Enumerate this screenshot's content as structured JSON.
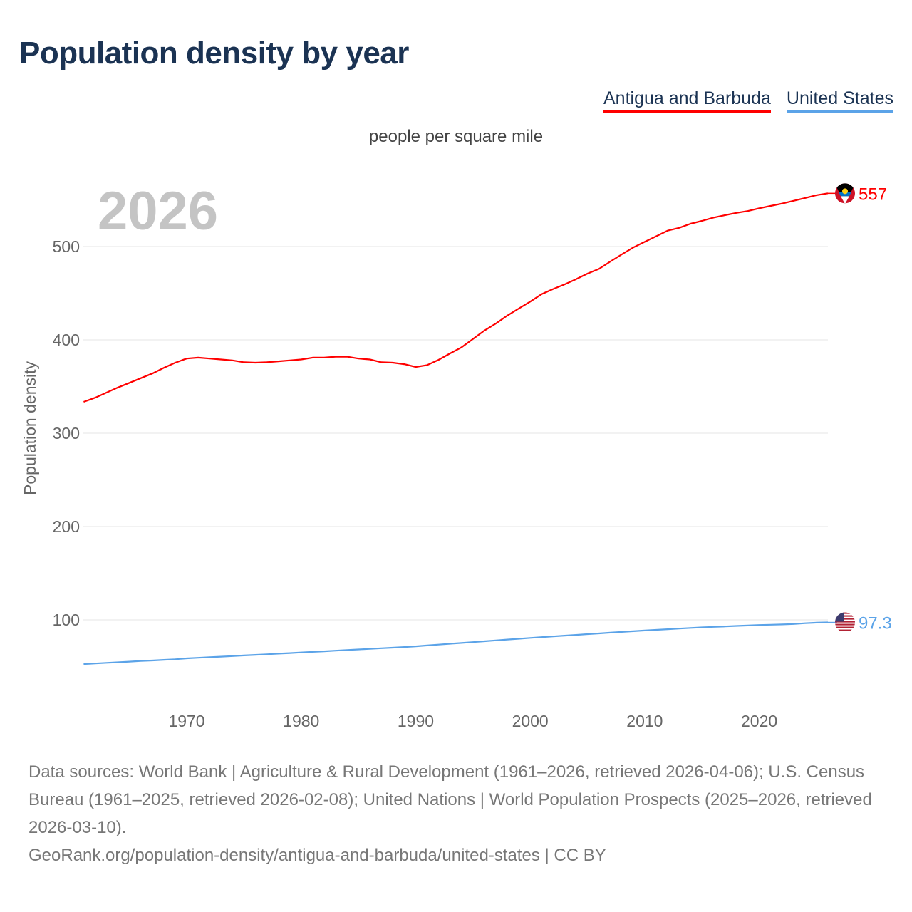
{
  "title": "Population density by year",
  "units_label": "people per square mile",
  "year_watermark": "2026",
  "chart_data": {
    "type": "line",
    "title": "Population density by year",
    "subtitle": "people per square mile",
    "xlabel": "",
    "ylabel": "Population density",
    "xlim": [
      1961,
      2026
    ],
    "ylim": [
      0,
      570
    ],
    "yticks": [
      100,
      200,
      300,
      400,
      500
    ],
    "xticks": [
      1970,
      1980,
      1990,
      2000,
      2010,
      2020
    ],
    "grid": true,
    "legend_position": "top-right",
    "x": [
      1961,
      1962,
      1963,
      1964,
      1965,
      1966,
      1967,
      1968,
      1969,
      1970,
      1971,
      1972,
      1973,
      1974,
      1975,
      1976,
      1977,
      1978,
      1979,
      1980,
      1981,
      1982,
      1983,
      1984,
      1985,
      1986,
      1987,
      1988,
      1989,
      1990,
      1991,
      1992,
      1993,
      1994,
      1995,
      1996,
      1997,
      1998,
      1999,
      2000,
      2001,
      2002,
      2003,
      2004,
      2005,
      2006,
      2007,
      2008,
      2009,
      2010,
      2011,
      2012,
      2013,
      2014,
      2015,
      2016,
      2017,
      2018,
      2019,
      2020,
      2021,
      2022,
      2023,
      2024,
      2025,
      2026
    ],
    "series": [
      {
        "name": "Antigua and Barbuda",
        "color": "#ff0000",
        "end_label": "557",
        "values": [
          333.6,
          338,
          343.5,
          349,
          354,
          359,
          364,
          370,
          375.6,
          380,
          381,
          380,
          379,
          378,
          376,
          375.6,
          376,
          377,
          378,
          379,
          381,
          381,
          382,
          382,
          380,
          379,
          376,
          375.6,
          374,
          371,
          373,
          378.6,
          385.5,
          392,
          401,
          410,
          417.5,
          426,
          433.6,
          441,
          449,
          454.5,
          459.5,
          465,
          471,
          476,
          484,
          491.6,
          499,
          505,
          511,
          517,
          520,
          524.4,
          527.5,
          531,
          533.6,
          536,
          538,
          541,
          543.5,
          546,
          549,
          552,
          555,
          557
        ]
      },
      {
        "name": "United States",
        "color": "#5ba3e8",
        "end_label": "97.3",
        "values": [
          52.7,
          53.3,
          54,
          54.6,
          55.3,
          56,
          56.5,
          57.2,
          57.8,
          58.8,
          59.4,
          60,
          60.6,
          61.2,
          61.9,
          62.5,
          63.1,
          63.8,
          64.4,
          65.1,
          65.7,
          66.3,
          67,
          67.7,
          68.3,
          68.9,
          69.6,
          70.2,
          70.9,
          71.7,
          72.6,
          73.5,
          74.4,
          75.3,
          76.2,
          77.1,
          78,
          78.9,
          79.8,
          80.7,
          81.5,
          82.3,
          83.1,
          83.9,
          84.7,
          85.5,
          86.3,
          87.1,
          87.9,
          88.6,
          89.3,
          90,
          90.7,
          91.4,
          92,
          92.5,
          93,
          93.5,
          94,
          94.5,
          94.8,
          95.1,
          95.6,
          96.4,
          97,
          97.3
        ]
      }
    ]
  },
  "footer": {
    "sources": "Data sources: World Bank | Agriculture & Rural Development (1961–2026, retrieved 2026-04-06); U.S. Census Bureau (1961–2025, retrieved 2026-02-08); United Nations | World Population Prospects (2025–2026, retrieved 2026-03-10).",
    "link": "GeoRank.org/population-density/antigua-and-barbuda/united-states | CC BY"
  }
}
